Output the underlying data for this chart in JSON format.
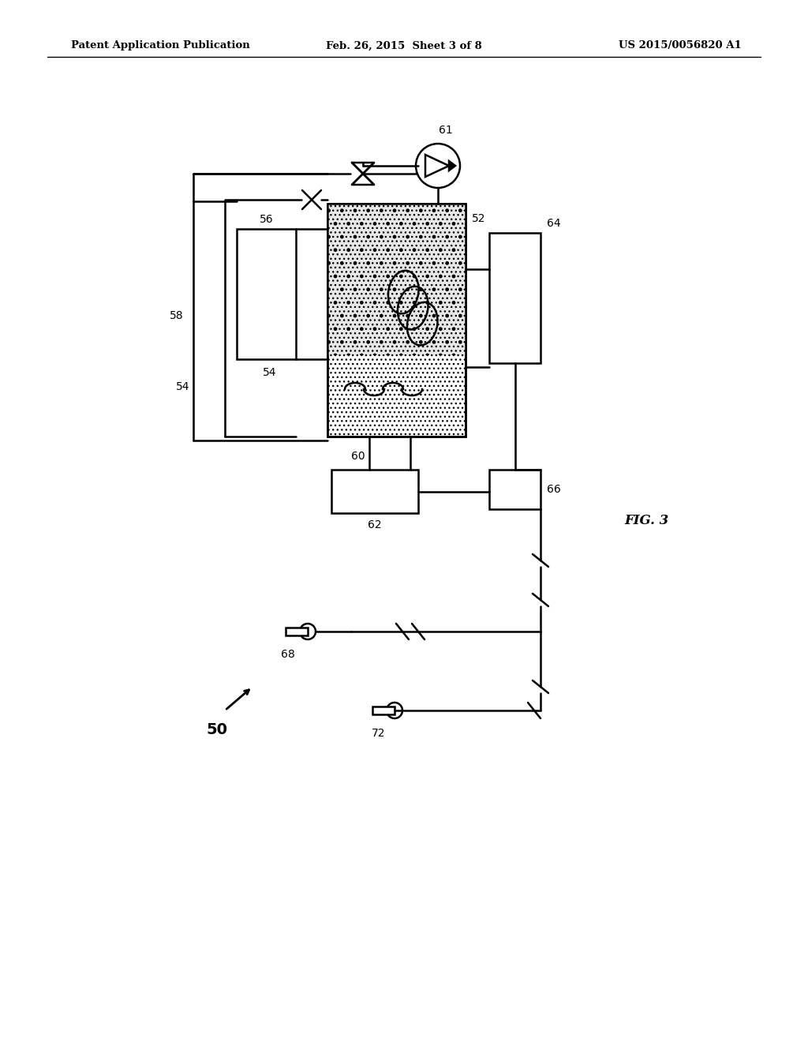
{
  "bg_color": "#ffffff",
  "line_color": "#000000",
  "header_left": "Patent Application Publication",
  "header_mid": "Feb. 26, 2015  Sheet 3 of 8",
  "header_right": "US 2015/0056820 A1",
  "fig_label": "FIG. 3"
}
